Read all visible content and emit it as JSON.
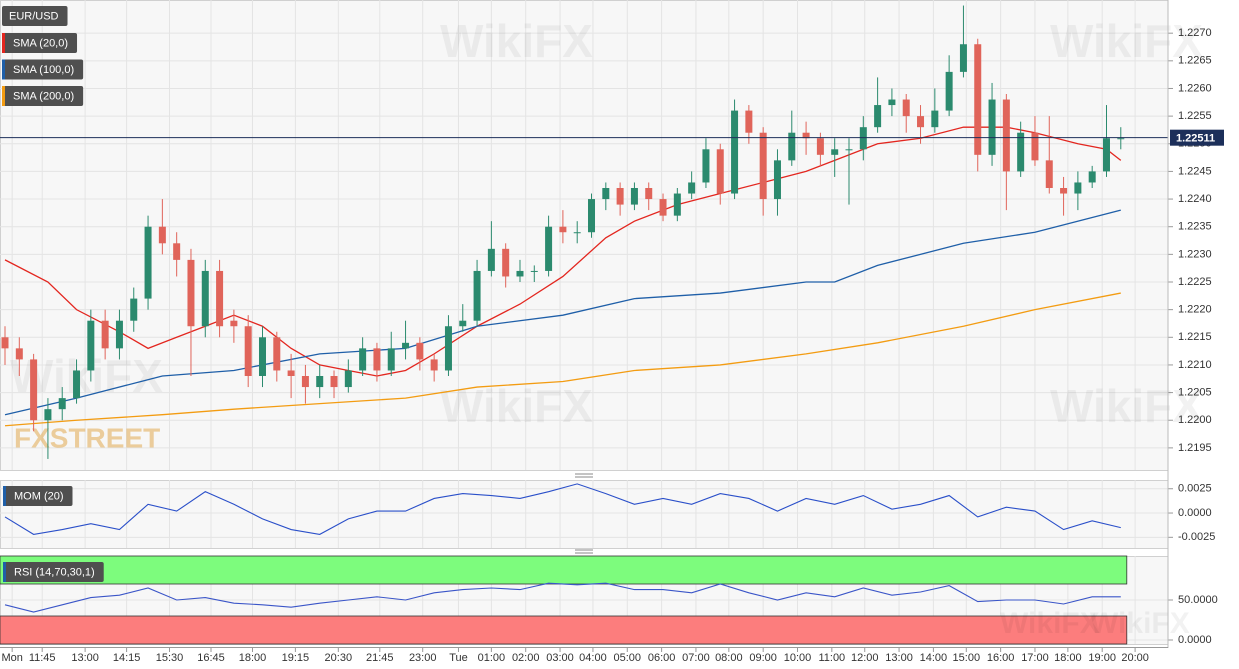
{
  "chart_data": [
    {
      "type": "candlestick",
      "title": "EUR/USD",
      "up_color": "#2b8a6e",
      "down_color": "#e0645a",
      "grid": true,
      "watermark": "FXSTREET",
      "watermark2": "WikiFX",
      "ylim": [
        1.2191,
        1.2276
      ],
      "yticks": [
        {
          "value": 1.2195,
          "label": "1.2195"
        },
        {
          "value": 1.22,
          "label": "1.2200"
        },
        {
          "value": 1.2205,
          "label": "1.2205"
        },
        {
          "value": 1.221,
          "label": "1.2210"
        },
        {
          "value": 1.2215,
          "label": "1.2215"
        },
        {
          "value": 1.222,
          "label": "1.2220"
        },
        {
          "value": 1.2225,
          "label": "1.2225"
        },
        {
          "value": 1.223,
          "label": "1.2230"
        },
        {
          "value": 1.2235,
          "label": "1.2235"
        },
        {
          "value": 1.224,
          "label": "1.2240"
        },
        {
          "value": 1.2245,
          "label": "1.2245"
        },
        {
          "value": 1.225,
          "label": "1.2250"
        },
        {
          "value": 1.2255,
          "label": "1.2255"
        },
        {
          "value": 1.226,
          "label": "1.2260"
        },
        {
          "value": 1.2265,
          "label": "1.2265"
        },
        {
          "value": 1.227,
          "label": "1.2270"
        }
      ],
      "last_price": 1.22511,
      "last_price_color": "#1c2f5a",
      "candles": [
        [
          1.2215,
          1.2217,
          1.221,
          1.2213
        ],
        [
          1.2213,
          1.2215,
          1.2208,
          1.2211
        ],
        [
          1.2211,
          1.2212,
          1.2198,
          1.22
        ],
        [
          1.22,
          1.2204,
          1.2193,
          1.2202
        ],
        [
          1.2202,
          1.2206,
          1.22,
          1.2204
        ],
        [
          1.2204,
          1.2211,
          1.2203,
          1.2209
        ],
        [
          1.2209,
          1.222,
          1.2207,
          1.2218
        ],
        [
          1.2218,
          1.222,
          1.2211,
          1.2213
        ],
        [
          1.2213,
          1.222,
          1.2211,
          1.2218
        ],
        [
          1.2218,
          1.2224,
          1.2216,
          1.2222
        ],
        [
          1.2222,
          1.2237,
          1.222,
          1.2235
        ],
        [
          1.2235,
          1.224,
          1.223,
          1.2232
        ],
        [
          1.2232,
          1.2234,
          1.2226,
          1.2229
        ],
        [
          1.2229,
          1.2231,
          1.2208,
          1.2217
        ],
        [
          1.2217,
          1.2229,
          1.2215,
          1.2227
        ],
        [
          1.2227,
          1.2229,
          1.2215,
          1.2217
        ],
        [
          1.2218,
          1.222,
          1.2214,
          1.2217
        ],
        [
          1.2217,
          1.2219,
          1.2206,
          1.2208
        ],
        [
          1.2208,
          1.2217,
          1.2206,
          1.2215
        ],
        [
          1.2215,
          1.2216,
          1.2207,
          1.2209
        ],
        [
          1.2209,
          1.2212,
          1.2204,
          1.2208
        ],
        [
          1.2208,
          1.221,
          1.2203,
          1.2206
        ],
        [
          1.2206,
          1.221,
          1.2204,
          1.2208
        ],
        [
          1.2208,
          1.2209,
          1.2204,
          1.2206
        ],
        [
          1.2206,
          1.2211,
          1.2205,
          1.2209
        ],
        [
          1.2209,
          1.2215,
          1.2208,
          1.2213
        ],
        [
          1.2213,
          1.2214,
          1.2207,
          1.2209
        ],
        [
          1.2209,
          1.2216,
          1.2208,
          1.2213
        ],
        [
          1.2213,
          1.2218,
          1.2211,
          1.2214
        ],
        [
          1.2214,
          1.2215,
          1.2209,
          1.2211
        ],
        [
          1.2211,
          1.2212,
          1.2207,
          1.2209
        ],
        [
          1.2209,
          1.2219,
          1.2208,
          1.2217
        ],
        [
          1.2217,
          1.2221,
          1.2216,
          1.2218
        ],
        [
          1.2218,
          1.2229,
          1.2217,
          1.2227
        ],
        [
          1.2227,
          1.2236,
          1.2226,
          1.2231
        ],
        [
          1.2231,
          1.2232,
          1.2224,
          1.2226
        ],
        [
          1.2226,
          1.2229,
          1.2225,
          1.2227
        ],
        [
          1.2227,
          1.2228,
          1.2225,
          1.2227
        ],
        [
          1.2227,
          1.2237,
          1.2226,
          1.2235
        ],
        [
          1.2235,
          1.2238,
          1.2232,
          1.2234
        ],
        [
          1.2234,
          1.2236,
          1.2232,
          1.2234
        ],
        [
          1.2234,
          1.2241,
          1.2233,
          1.224
        ],
        [
          1.224,
          1.2243,
          1.2238,
          1.2242
        ],
        [
          1.2242,
          1.2243,
          1.2237,
          1.2239
        ],
        [
          1.2239,
          1.2243,
          1.2238,
          1.2242
        ],
        [
          1.2242,
          1.2243,
          1.2238,
          1.224
        ],
        [
          1.224,
          1.2241,
          1.2236,
          1.2237
        ],
        [
          1.2237,
          1.2242,
          1.2236,
          1.2241
        ],
        [
          1.2241,
          1.2245,
          1.224,
          1.2243
        ],
        [
          1.2243,
          1.2251,
          1.2242,
          1.2249
        ],
        [
          1.2249,
          1.225,
          1.2239,
          1.2241
        ],
        [
          1.2241,
          1.2258,
          1.224,
          1.2256
        ],
        [
          1.2256,
          1.2257,
          1.225,
          1.2252
        ],
        [
          1.2252,
          1.2253,
          1.2237,
          1.224
        ],
        [
          1.224,
          1.2249,
          1.2237,
          1.2247
        ],
        [
          1.2247,
          1.2256,
          1.2246,
          1.2252
        ],
        [
          1.2252,
          1.2254,
          1.2248,
          1.2251
        ],
        [
          1.2251,
          1.2252,
          1.2246,
          1.2248
        ],
        [
          1.2248,
          1.2251,
          1.2244,
          1.2249
        ],
        [
          1.2249,
          1.2251,
          1.2239,
          1.2249
        ],
        [
          1.2249,
          1.2255,
          1.2247,
          1.2253
        ],
        [
          1.2253,
          1.2262,
          1.2252,
          1.2257
        ],
        [
          1.2257,
          1.226,
          1.2255,
          1.2258
        ],
        [
          1.2258,
          1.2259,
          1.2252,
          1.2255
        ],
        [
          1.2255,
          1.2257,
          1.225,
          1.2253
        ],
        [
          1.2253,
          1.226,
          1.2252,
          1.2256
        ],
        [
          1.2256,
          1.2266,
          1.2255,
          1.2263
        ],
        [
          1.2263,
          1.2275,
          1.2262,
          1.2268
        ],
        [
          1.2268,
          1.2269,
          1.2245,
          1.2248
        ],
        [
          1.2248,
          1.2261,
          1.2246,
          1.2258
        ],
        [
          1.2258,
          1.2259,
          1.2238,
          1.2245
        ],
        [
          1.2245,
          1.2254,
          1.2244,
          1.2252
        ],
        [
          1.2252,
          1.2255,
          1.2246,
          1.2247
        ],
        [
          1.2247,
          1.2255,
          1.2241,
          1.2242
        ],
        [
          1.2242,
          1.2244,
          1.2237,
          1.2241
        ],
        [
          1.2241,
          1.2245,
          1.2238,
          1.2243
        ],
        [
          1.2243,
          1.2246,
          1.2242,
          1.2245
        ],
        [
          1.2245,
          1.2257,
          1.2244,
          1.2251
        ],
        [
          1.2251,
          1.2253,
          1.2249,
          1.2251
        ]
      ],
      "overlays": [
        {
          "name": "SMA (20,0)",
          "color": "#e3261f",
          "x": [
            0,
            3,
            5,
            8,
            10,
            12,
            14,
            16,
            18,
            20,
            22,
            24,
            26,
            28,
            30,
            33,
            36,
            39,
            42,
            44,
            47,
            50,
            53,
            56,
            58,
            61,
            64,
            67,
            70,
            72,
            75,
            77,
            78
          ],
          "values": [
            1.2229,
            1.2225,
            1.222,
            1.2216,
            1.2213,
            1.2215,
            1.2217,
            1.2219,
            1.2217,
            1.2213,
            1.221,
            1.2209,
            1.2208,
            1.2209,
            1.2212,
            1.2217,
            1.2221,
            1.2226,
            1.2233,
            1.2236,
            1.2239,
            1.2241,
            1.2243,
            1.2245,
            1.2247,
            1.225,
            1.2251,
            1.2253,
            1.2253,
            1.2252,
            1.225,
            1.2249,
            1.2247
          ]
        },
        {
          "name": "SMA (100,0)",
          "color": "#1f5fa8",
          "x": [
            0,
            5,
            11,
            16,
            22,
            28,
            33,
            39,
            44,
            50,
            56,
            58,
            61,
            67,
            72,
            78
          ],
          "values": [
            1.2201,
            1.2204,
            1.2208,
            1.2209,
            1.2212,
            1.2213,
            1.2217,
            1.2219,
            1.2222,
            1.2223,
            1.2225,
            1.2225,
            1.2228,
            1.2232,
            1.2234,
            1.2238
          ]
        },
        {
          "name": "SMA (200,0)",
          "color": "#f39c12",
          "x": [
            0,
            5,
            11,
            16,
            22,
            28,
            33,
            39,
            44,
            50,
            56,
            61,
            67,
            72,
            78
          ],
          "values": [
            1.2199,
            1.22,
            1.2201,
            1.2202,
            1.2203,
            1.2204,
            1.2206,
            1.2207,
            1.2209,
            1.221,
            1.2212,
            1.2214,
            1.2217,
            1.222,
            1.2223
          ]
        }
      ]
    },
    {
      "type": "line",
      "title": "MOM (20)",
      "ylim": [
        -0.0036,
        0.0034
      ],
      "yticks": [
        0.0025,
        {
          "value": 0,
          "label": "0.0000"
        },
        -0.0025
      ],
      "grid": true,
      "series": [
        {
          "color": "#2a4fc9",
          "x": [
            0,
            2,
            4,
            6,
            8,
            10,
            12,
            14,
            16,
            18,
            20,
            22,
            24,
            26,
            28,
            30,
            32,
            34,
            36,
            38,
            40,
            42,
            44,
            46,
            48,
            50,
            52,
            54,
            56,
            58,
            60,
            62,
            64,
            66,
            68,
            70,
            72,
            74,
            76,
            78
          ],
          "values": [
            -0.0004,
            -0.0022,
            -0.0017,
            -0.0011,
            -0.0017,
            0.0009,
            0.0002,
            0.0022,
            0.0009,
            -0.0006,
            -0.0017,
            -0.0022,
            -0.0006,
            0.0002,
            0.0002,
            0.0015,
            0.002,
            0.0018,
            0.0015,
            0.0022,
            0.003,
            0.002,
            0.0009,
            0.0015,
            0.0009,
            0.002,
            0.0015,
            0.0002,
            0.0015,
            0.0009,
            0.0018,
            0.0004,
            0.0009,
            0.0018,
            -0.0004,
            0.0006,
            0.0002,
            -0.0017,
            -0.0008,
            -0.0015
          ]
        }
      ]
    },
    {
      "type": "line",
      "title": "RSI (14,70,30,1)",
      "ylim": [
        -5,
        105
      ],
      "yticks": [
        {
          "value": 50,
          "label": "50.0000"
        },
        {
          "value": 0,
          "label": "0.0000"
        }
      ],
      "grid": true,
      "overbought": 70,
      "oversold": 30,
      "overbought_color": "#7dfc7d",
      "oversold_color": "#fc7d7d",
      "series": [
        {
          "color": "#3a55c8",
          "x": [
            0,
            2,
            4,
            6,
            8,
            10,
            12,
            14,
            16,
            18,
            20,
            22,
            24,
            26,
            28,
            30,
            32,
            34,
            36,
            38,
            40,
            42,
            44,
            46,
            48,
            50,
            52,
            54,
            56,
            58,
            60,
            62,
            64,
            66,
            68,
            70,
            72,
            74,
            76,
            78
          ],
          "values": [
            44,
            35,
            44,
            53,
            56,
            65,
            50,
            53,
            46,
            44,
            41,
            46,
            50,
            54,
            50,
            59,
            63,
            65,
            63,
            71,
            69,
            71,
            63,
            63,
            59,
            70,
            59,
            50,
            59,
            54,
            65,
            56,
            60,
            68,
            48,
            50,
            50,
            45,
            54,
            54
          ]
        }
      ],
      "xlim": [
        -0.35,
        81.3
      ],
      "xticks": [
        {
          "value": 0.5,
          "label": "Mon"
        },
        {
          "value": 2.6,
          "label": "11:45"
        },
        {
          "value": 5.6,
          "label": "13:00"
        },
        {
          "value": 8.5,
          "label": "14:15"
        },
        {
          "value": 11.5,
          "label": "15:30"
        },
        {
          "value": 14.4,
          "label": "16:45"
        },
        {
          "value": 17.3,
          "label": "18:00"
        },
        {
          "value": 20.3,
          "label": "19:15"
        },
        {
          "value": 23.3,
          "label": "20:30"
        },
        {
          "value": 26.2,
          "label": "21:45"
        },
        {
          "value": 29.2,
          "label": "23:00"
        },
        {
          "value": 31.7,
          "label": "Tue"
        },
        {
          "value": 34,
          "label": "01:00"
        },
        {
          "value": 36.4,
          "label": "02:00"
        },
        {
          "value": 38.8,
          "label": "03:00"
        },
        {
          "value": 41.1,
          "label": "04:00"
        },
        {
          "value": 43.5,
          "label": "05:00"
        },
        {
          "value": 45.9,
          "label": "06:00"
        },
        {
          "value": 48.3,
          "label": "07:00"
        },
        {
          "value": 50.6,
          "label": "08:00"
        },
        {
          "value": 53,
          "label": "09:00"
        },
        {
          "value": 55.4,
          "label": "10:00"
        },
        {
          "value": 57.8,
          "label": "11:00"
        },
        {
          "value": 60.1,
          "label": "12:00"
        },
        {
          "value": 62.5,
          "label": "13:00"
        },
        {
          "value": 64.9,
          "label": "14:00"
        },
        {
          "value": 67.2,
          "label": "15:00"
        },
        {
          "value": 69.6,
          "label": "16:00"
        },
        {
          "value": 72,
          "label": "17:00"
        },
        {
          "value": 74.3,
          "label": "18:00"
        },
        {
          "value": 76.7,
          "label": "19:00"
        },
        {
          "value": 79,
          "label": "20:00"
        }
      ]
    }
  ]
}
